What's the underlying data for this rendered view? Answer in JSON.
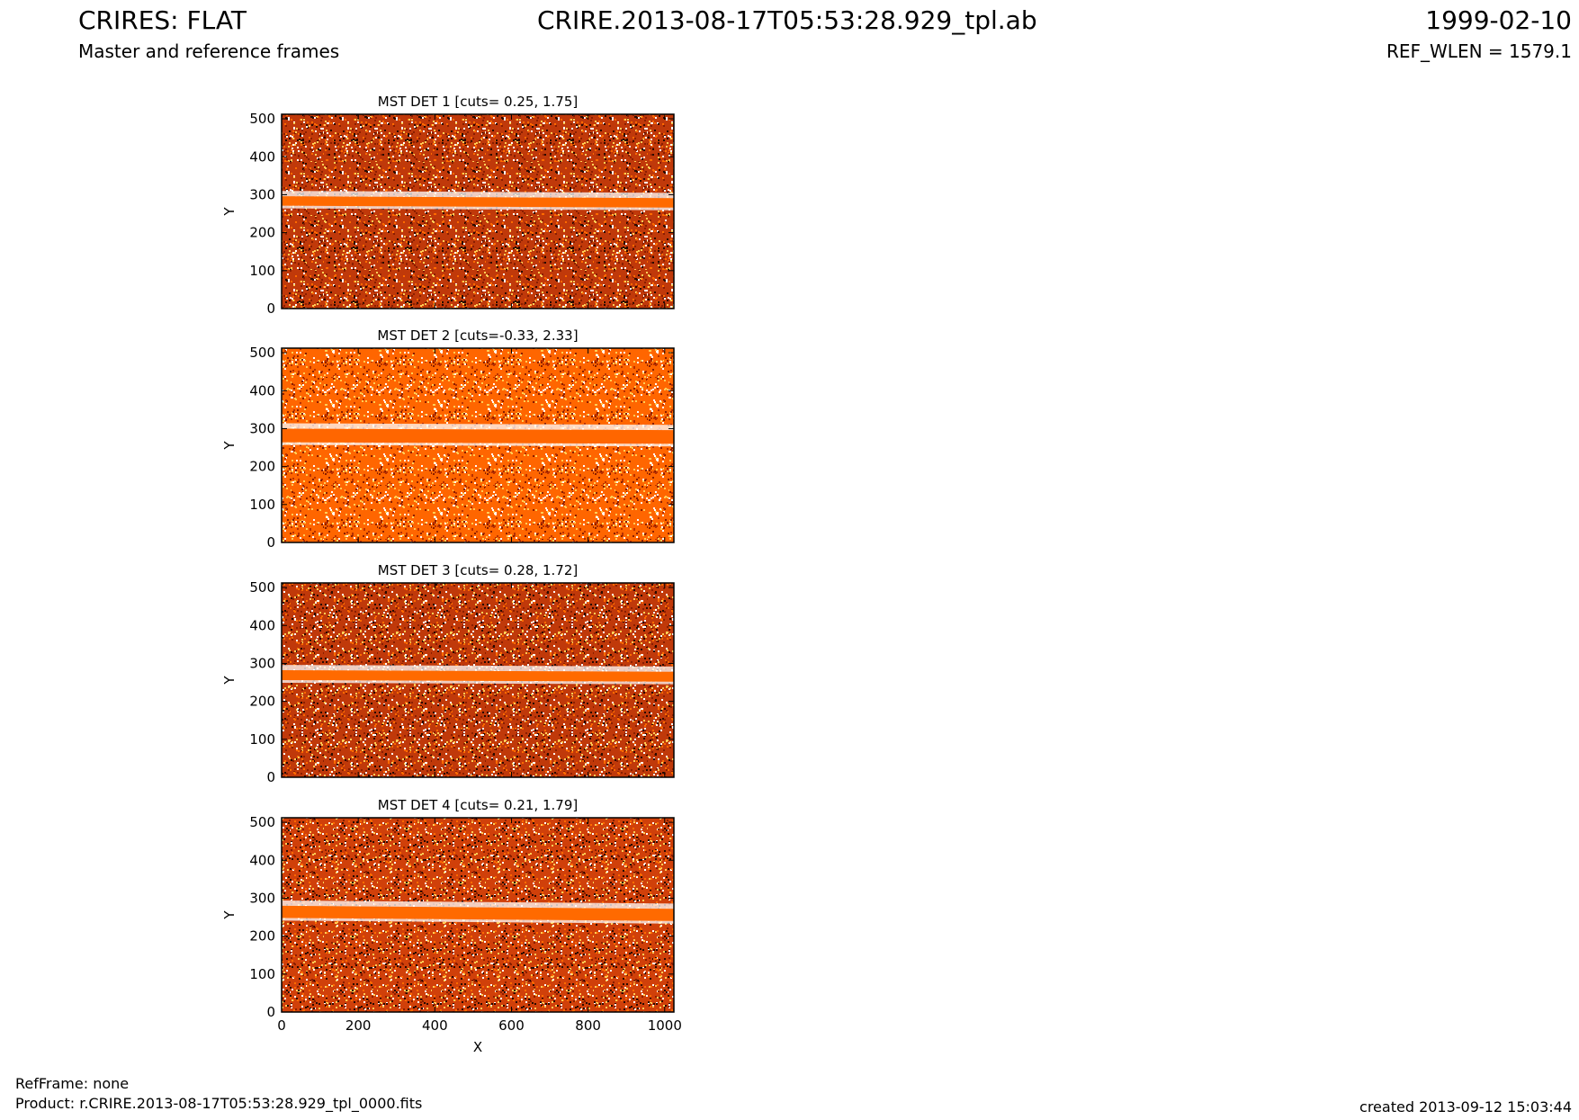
{
  "header": {
    "title": "CRIRES: FLAT",
    "subtitle": "Master and reference frames",
    "filename": "CRIRE.2013-08-17T05:53:28.929_tpl.ab",
    "date": "1999-02-10",
    "ref_wlen": "REF_WLEN = 1579.1"
  },
  "footer": {
    "refframe": "RefFrame: none",
    "product": "Product: r.CRIRE.2013-08-17T05:53:28.929_tpl_0000.fits",
    "created": "created 2013-09-12 15:03:44"
  },
  "chart_data": [
    {
      "type": "heatmap",
      "title": "MST DET 1 [cuts= 0.25, 1.75]",
      "ylabel": "Y",
      "xlabel": "",
      "xlim": [
        0,
        1024
      ],
      "ylim": [
        0,
        512
      ],
      "yticks": [
        0,
        100,
        200,
        300,
        400,
        500
      ],
      "xticks": [],
      "cuts": [
        0.25,
        1.75
      ],
      "band_y": [
        271,
        296
      ],
      "band_y_end": [
        266,
        291
      ],
      "colors": {
        "dark": "#2a0a00",
        "mid": "#c0390a",
        "band": "#ff6a00",
        "light": "#ffffff"
      }
    },
    {
      "type": "heatmap",
      "title": "MST DET 2 [cuts=-0.33, 2.33]",
      "ylabel": "Y",
      "xlabel": "",
      "xlim": [
        0,
        1024
      ],
      "ylim": [
        0,
        512
      ],
      "yticks": [
        0,
        100,
        200,
        300,
        400,
        500
      ],
      "xticks": [],
      "cuts": [
        -0.33,
        2.33
      ],
      "band_y": [
        264,
        300
      ],
      "band_y_end": [
        260,
        296
      ],
      "colors": {
        "dark": "#b83000",
        "mid": "#ff6600",
        "band": "#ff6600",
        "light": "#ffffff"
      }
    },
    {
      "type": "heatmap",
      "title": "MST DET 3 [cuts= 0.28, 1.72]",
      "ylabel": "Y",
      "xlabel": "",
      "xlim": [
        0,
        1024
      ],
      "ylim": [
        0,
        512
      ],
      "yticks": [
        0,
        100,
        200,
        300,
        400,
        500
      ],
      "xticks": [],
      "cuts": [
        0.28,
        1.72
      ],
      "band_y": [
        256,
        282
      ],
      "band_y_end": [
        252,
        278
      ],
      "colors": {
        "dark": "#2a0a00",
        "mid": "#c0390a",
        "band": "#ff6a00",
        "light": "#ffffff"
      }
    },
    {
      "type": "heatmap",
      "title": "MST DET 4 [cuts= 0.21, 1.79]",
      "ylabel": "Y",
      "xlabel": "X",
      "xlim": [
        0,
        1024
      ],
      "ylim": [
        0,
        512
      ],
      "yticks": [
        0,
        100,
        200,
        300,
        400,
        500
      ],
      "xticks": [
        0,
        200,
        400,
        600,
        800,
        1000
      ],
      "cuts": [
        0.21,
        1.79
      ],
      "band_y": [
        248,
        280
      ],
      "band_y_end": [
        240,
        272
      ],
      "colors": {
        "dark": "#2a0a00",
        "mid": "#d0400a",
        "band": "#ff6a00",
        "light": "#ffffff"
      }
    }
  ]
}
